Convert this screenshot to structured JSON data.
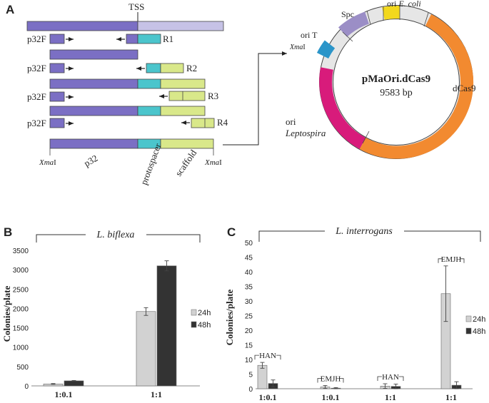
{
  "panels": {
    "A": "A",
    "B": "B",
    "C": "C"
  },
  "construct": {
    "tss_label": "TSS",
    "primer_forward": "p32F",
    "reverse_primers": [
      "R1",
      "R2",
      "R3",
      "R4"
    ],
    "segments": {
      "p32": "p32",
      "protospacer": "protospacer",
      "scaffold": "scaffold"
    },
    "restriction_site": "XmaI",
    "restriction_italic": "Xma",
    "restriction_roman": "I"
  },
  "plasmid": {
    "name": "pMaOri.dCas9",
    "size": "9583 bp",
    "features": {
      "spc": "Spc",
      "ori_ecoli_prefix": "ori ",
      "ori_ecoli_species": "E. coli",
      "ori_t": "ori T",
      "xmai": "XmaI",
      "dcas9": "dCas9",
      "ori_lepto_prefix": "ori",
      "ori_lepto_species": "Leptospira"
    },
    "colors": {
      "dcas9": "#f28a30",
      "ori_leptospira": "#d81b7b",
      "spc": "#9b8ec6",
      "ori_ecoli": "#f2d81d",
      "ori_t": "#2b95c9",
      "backbone": "#e6e6e6"
    }
  },
  "chart_data": [
    {
      "type": "bar",
      "panel": "B",
      "title": "L. biflexa",
      "ylabel": "Colonies/plate",
      "ylim": [
        0,
        3500
      ],
      "yticks": [
        0,
        500,
        1000,
        1500,
        2000,
        2500,
        3000,
        3500
      ],
      "categories": [
        "1:0.1",
        "1:1"
      ],
      "series": [
        {
          "name": "24h",
          "color": "#d2d2d2",
          "values": [
            50,
            1920
          ],
          "errors": [
            10,
            100
          ]
        },
        {
          "name": "48h",
          "color": "#333333",
          "values": [
            130,
            3100
          ],
          "errors": [
            10,
            130
          ]
        }
      ]
    },
    {
      "type": "bar",
      "panel": "C",
      "title": "L. interrogans",
      "ylabel": "Colonies/plate",
      "ylim": [
        0,
        50
      ],
      "yticks": [
        0,
        5,
        10,
        15,
        20,
        25,
        30,
        35,
        40,
        45,
        50
      ],
      "categories": [
        "1:0.1",
        "1:0.1",
        "1:1",
        "1:1"
      ],
      "groups": [
        "HAN",
        "EMJH",
        "HAN",
        "EMJH"
      ],
      "series": [
        {
          "name": "24h",
          "color": "#d2d2d2",
          "values": [
            8,
            0.6,
            0.9,
            32.5
          ],
          "errors": [
            1,
            0.5,
            0.8,
            9.5
          ]
        },
        {
          "name": "48h",
          "color": "#333333",
          "values": [
            1.8,
            0.2,
            0.8,
            1.2
          ],
          "errors": [
            1.2,
            0.2,
            0.8,
            1.2
          ]
        }
      ]
    }
  ]
}
